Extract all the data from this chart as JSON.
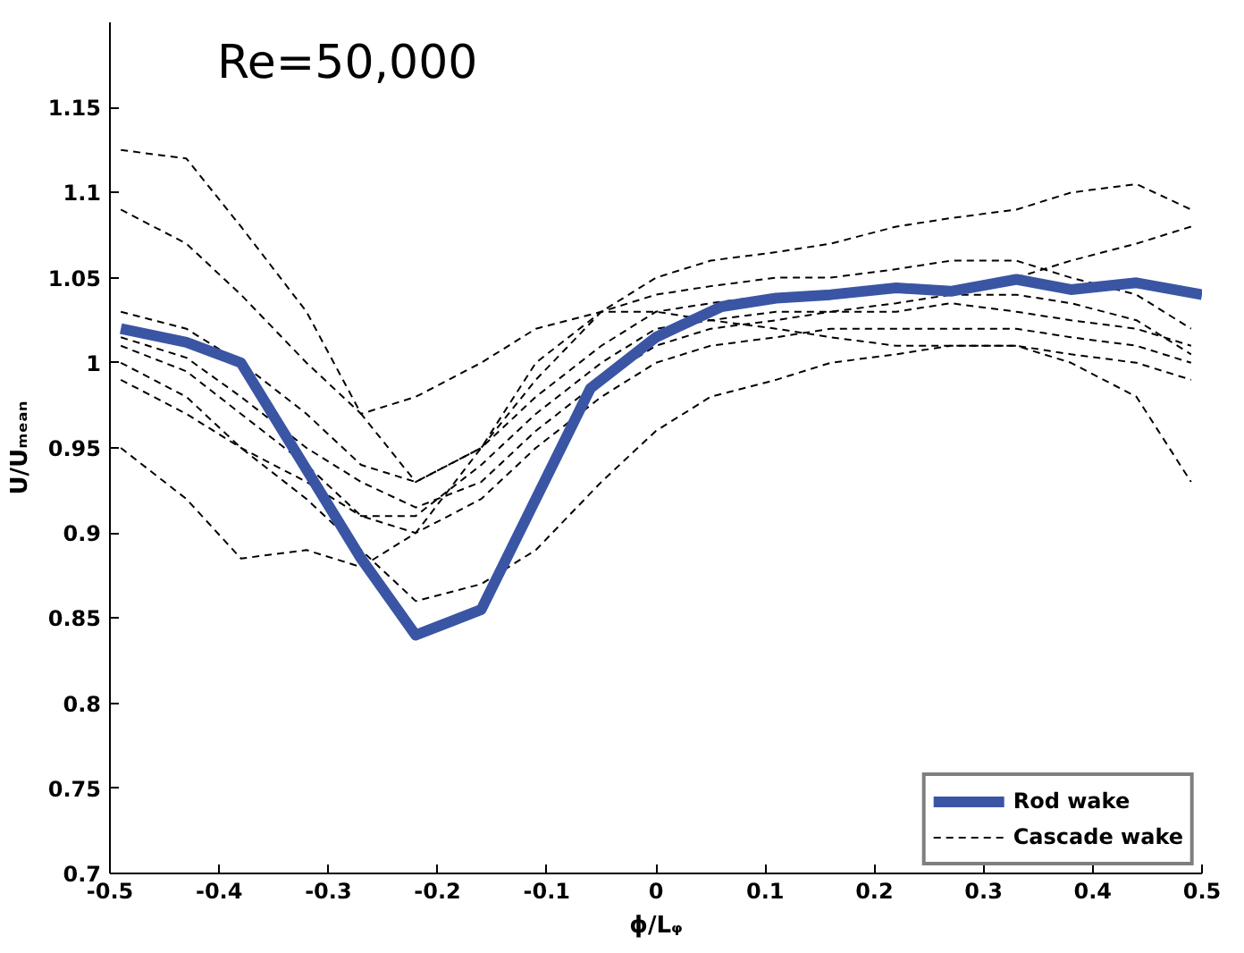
{
  "chart_data": {
    "type": "line",
    "xlabel": "ϕ/Lᵩ",
    "ylabel": "U/Uₘₑₐₙ",
    "annotations": [
      "Re=50,000"
    ],
    "xlim": [
      -0.5,
      0.5
    ],
    "ylim": [
      0.7,
      1.2
    ],
    "xticks": [
      -0.5,
      -0.4,
      -0.3,
      -0.2,
      -0.1,
      0,
      0.1,
      0.2,
      0.3,
      0.4,
      0.5
    ],
    "yticks": [
      0.7,
      0.75,
      0.8,
      0.85,
      0.9,
      0.95,
      1,
      1.05,
      1.1,
      1.15
    ],
    "grid": false,
    "legend": "bottom right",
    "marker": "none",
    "x": [
      -0.49,
      -0.43,
      -0.38,
      -0.32,
      -0.27,
      -0.22,
      -0.16,
      -0.11,
      -0.05,
      0,
      0.05,
      0.11,
      0.16,
      0.22,
      0.27,
      0.33,
      0.38,
      0.44,
      0.49
    ],
    "series": [
      {
        "name": "Cascade wake",
        "color": "#000000",
        "line_style": "dashed",
        "values": [
          1.125,
          1.12,
          1.08,
          1.03,
          0.97,
          0.93,
          0.95,
          0.99,
          1.03,
          1.05,
          1.06,
          1.065,
          1.07,
          1.08,
          1.085,
          1.09,
          1.1,
          1.105,
          1.09
        ]
      },
      {
        "color": "#000000",
        "line_style": "dashed",
        "values": [
          0.95,
          0.92,
          0.885,
          0.89,
          0.88,
          0.9,
          0.95,
          1.0,
          1.03,
          1.04,
          1.045,
          1.05,
          1.05,
          1.055,
          1.06,
          1.06,
          1.05,
          1.04,
          1.02
        ]
      },
      {
        "color": "#000000",
        "line_style": "dashed",
        "values": [
          1.015,
          1.003,
          0.98,
          0.95,
          0.93,
          0.915,
          0.93,
          0.96,
          0.99,
          1.01,
          1.02,
          1.025,
          1.03,
          1.03,
          1.035,
          1.03,
          1.025,
          1.02,
          1.01
        ]
      },
      {
        "color": "#000000",
        "line_style": "dashed",
        "values": [
          1.01,
          0.995,
          0.97,
          0.94,
          0.91,
          0.9,
          0.92,
          0.95,
          0.98,
          1.0,
          1.01,
          1.015,
          1.02,
          1.02,
          1.02,
          1.02,
          1.015,
          1.01,
          1.0
        ]
      },
      {
        "color": "#000000",
        "line_style": "dashed",
        "values": [
          1.03,
          1.02,
          1.0,
          0.97,
          0.94,
          0.93,
          0.95,
          0.98,
          1.01,
          1.03,
          1.035,
          1.04,
          1.04,
          1.045,
          1.04,
          1.04,
          1.035,
          1.025,
          1.005
        ]
      },
      {
        "color": "#000000",
        "line_style": "dashed",
        "values": [
          1.09,
          1.07,
          1.04,
          1.0,
          0.97,
          0.98,
          1.0,
          1.02,
          1.03,
          1.03,
          1.025,
          1.02,
          1.015,
          1.01,
          1.01,
          1.01,
          1.005,
          1.0,
          0.99
        ]
      },
      {
        "color": "#000000",
        "line_style": "dashed",
        "values": [
          1.0,
          0.98,
          0.95,
          0.92,
          0.89,
          0.86,
          0.87,
          0.89,
          0.93,
          0.96,
          0.98,
          0.99,
          1.0,
          1.005,
          1.01,
          1.01,
          1.0,
          0.98,
          0.93
        ]
      },
      {
        "color": "#000000",
        "line_style": "dashed",
        "values": [
          0.99,
          0.97,
          0.95,
          0.93,
          0.91,
          0.91,
          0.94,
          0.97,
          1.0,
          1.02,
          1.025,
          1.03,
          1.03,
          1.035,
          1.04,
          1.05,
          1.06,
          1.07,
          1.08
        ]
      },
      {
        "name": "Rod wake",
        "color": "#3a55a4",
        "line_style": "solid",
        "x": [
          -0.49,
          -0.43,
          -0.38,
          -0.27,
          -0.22,
          -0.16,
          -0.06,
          0,
          0.06,
          0.11,
          0.16,
          0.22,
          0.27,
          0.33,
          0.38,
          0.44,
          0.5
        ],
        "values": [
          1.02,
          1.012,
          1.0,
          0.885,
          0.84,
          0.855,
          0.985,
          1.015,
          1.033,
          1.038,
          1.04,
          1.044,
          1.042,
          1.049,
          1.043,
          1.047,
          1.04
        ]
      }
    ]
  }
}
